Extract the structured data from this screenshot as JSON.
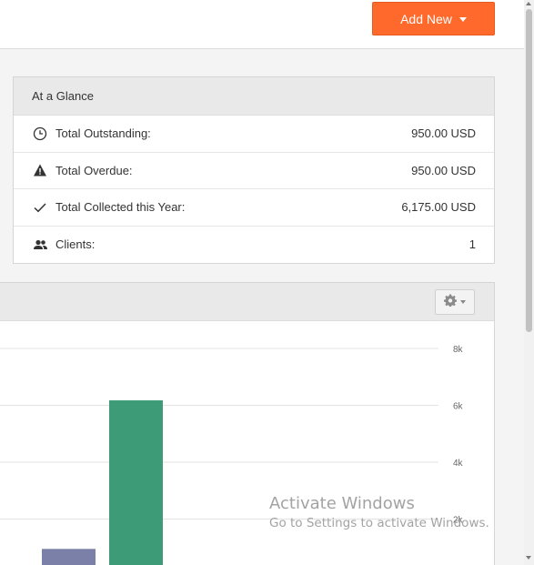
{
  "header": {
    "add_new_label": "Add New"
  },
  "glance": {
    "title": "At a Glance",
    "rows": [
      {
        "icon": "clock-icon",
        "label": "Total Outstanding:",
        "value": "950.00 USD"
      },
      {
        "icon": "warning-icon",
        "label": "Total Overdue:",
        "value": "950.00 USD"
      },
      {
        "icon": "checkmark-icon",
        "label": "Total Collected this Year:",
        "value": "6,175.00 USD"
      },
      {
        "icon": "users-icon",
        "label": "Clients:",
        "value": "1"
      }
    ]
  },
  "chart_data": {
    "type": "bar",
    "y_tick_labels": [
      "8k",
      "6k",
      "4k",
      "2k"
    ],
    "ylim": [
      0,
      8000
    ],
    "grid": true,
    "y_axis_side": "right",
    "series": [
      {
        "value": 950,
        "color": "#7b80a8"
      },
      {
        "value": 6175,
        "color": "#3d9b77"
      }
    ]
  },
  "watermark": {
    "title": "Activate Windows",
    "subtitle": "Go to Settings to activate Windows."
  },
  "colors": {
    "accent": "#ff6a2c",
    "bar_outstanding": "#7b80a8",
    "bar_collected": "#3d9b77"
  }
}
